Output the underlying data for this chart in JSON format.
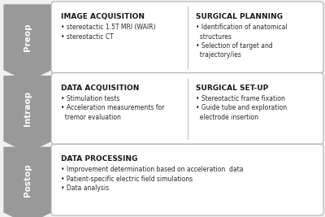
{
  "background_color": "#f0f0f0",
  "arrow_color": "#999999",
  "box_fill_color": "#f8f8f8",
  "box_edge_color": "#b0b0b0",
  "rows": [
    {
      "label": "Preop",
      "panels": [
        {
          "title": "IMAGE ACQUISITION",
          "bullets": [
            "• stereotactic 1.5T MRI (WAIR)",
            "• stereotactic CT"
          ],
          "col": 0
        },
        {
          "title": "SURGICAL PLANNING",
          "bullets": [
            "• Identification of anatomical",
            "  structures",
            "• Selection of target and",
            "  trajectory/ies"
          ],
          "col": 1
        }
      ]
    },
    {
      "label": "Intraop",
      "panels": [
        {
          "title": "DATA ACQUISITION",
          "bullets": [
            "• Stimulation tests",
            "• Acceleration measurements for",
            "  tremor evaluation"
          ],
          "col": 0
        },
        {
          "title": "SURGICAL SET-UP",
          "bullets": [
            "• Stereotactic frame fixation",
            "• Guide tube and exploration",
            "  electrode insertion"
          ],
          "col": 1
        }
      ]
    },
    {
      "label": "Postop",
      "panels": [
        {
          "title": "DATA PROCESSING",
          "bullets": [
            "• Improvement determination based on acceleration  data",
            "• Patient-specific electric field simulations",
            "• Data analysis"
          ],
          "col": 2
        }
      ]
    }
  ],
  "title_fontsize": 6.5,
  "bullet_fontsize": 5.5,
  "label_fontsize": 7.5
}
